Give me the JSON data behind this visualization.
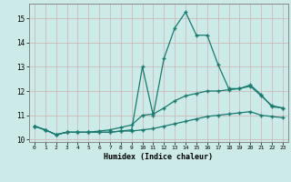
{
  "xlabel": "Humidex (Indice chaleur)",
  "x": [
    0,
    1,
    2,
    3,
    4,
    5,
    6,
    7,
    8,
    9,
    10,
    11,
    12,
    13,
    14,
    15,
    16,
    17,
    18,
    19,
    20,
    21,
    22,
    23
  ],
  "y_max": [
    10.55,
    10.4,
    10.2,
    10.3,
    10.3,
    10.3,
    10.3,
    10.3,
    10.35,
    10.4,
    13.0,
    11.0,
    13.35,
    14.6,
    15.25,
    14.3,
    14.3,
    13.1,
    12.1,
    12.1,
    12.25,
    11.85,
    11.35,
    11.3
  ],
  "y_mean": [
    10.55,
    10.4,
    10.2,
    10.3,
    10.3,
    10.3,
    10.35,
    10.4,
    10.5,
    10.6,
    11.0,
    11.05,
    11.3,
    11.6,
    11.8,
    11.9,
    12.0,
    12.0,
    12.05,
    12.1,
    12.2,
    11.8,
    11.4,
    11.3
  ],
  "y_min": [
    10.55,
    10.4,
    10.2,
    10.3,
    10.3,
    10.3,
    10.3,
    10.3,
    10.35,
    10.35,
    10.4,
    10.45,
    10.55,
    10.65,
    10.75,
    10.85,
    10.95,
    11.0,
    11.05,
    11.1,
    11.15,
    11.0,
    10.95,
    10.9
  ],
  "line_color": "#1a7a6e",
  "bg_color": "#cceae8",
  "grid_color": "#ccbbbb",
  "ylim": [
    9.9,
    15.6
  ],
  "xlim": [
    -0.5,
    23.5
  ],
  "yticks": [
    10,
    11,
    12,
    13,
    14,
    15
  ],
  "xtick_labels": [
    "0",
    "1",
    "2",
    "3",
    "4",
    "5",
    "6",
    "7",
    "8",
    "9",
    "10",
    "11",
    "12",
    "13",
    "14",
    "15",
    "16",
    "17",
    "18",
    "19",
    "20",
    "21",
    "22",
    "23"
  ]
}
